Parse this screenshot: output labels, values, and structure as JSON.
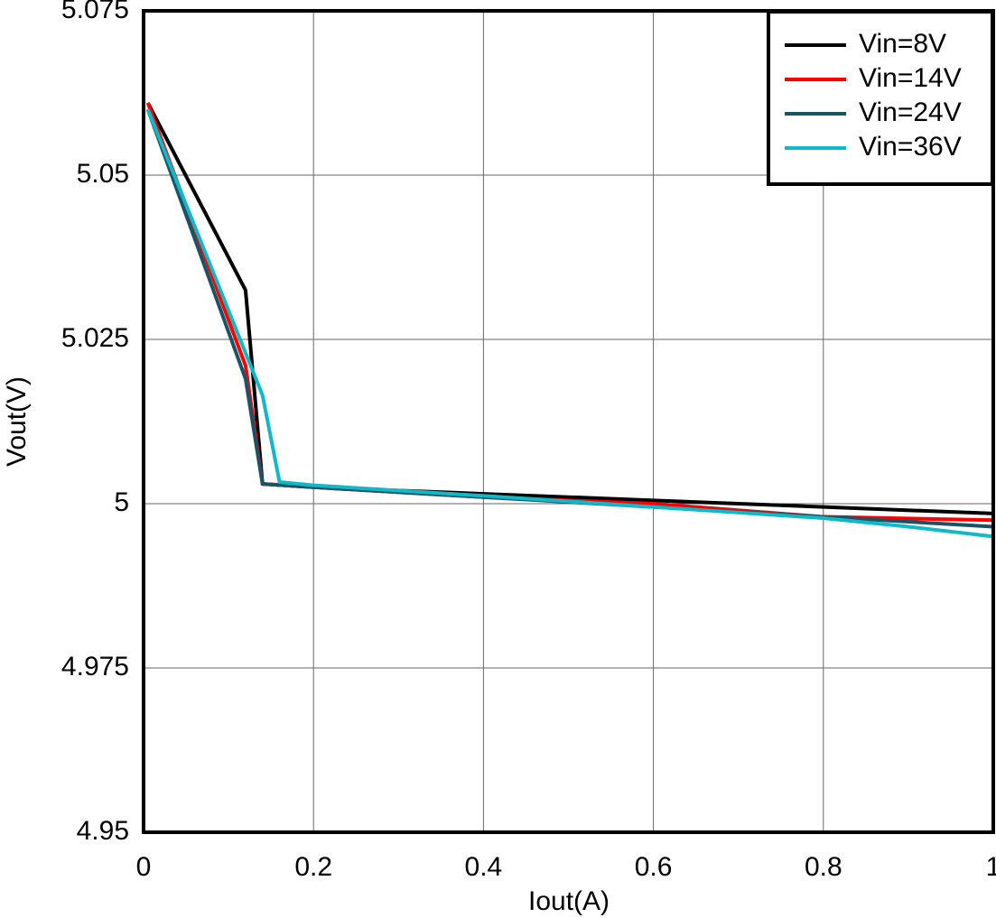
{
  "chart_data": {
    "type": "line",
    "x_label": "Iout(A)",
    "y_label": "Vout(V)",
    "xlim": [
      0,
      1
    ],
    "xticks": [
      0,
      0.2,
      0.4,
      0.6,
      0.8,
      1
    ],
    "ylim": [
      4.95,
      5.075
    ],
    "yticks": [
      4.95,
      4.975,
      5,
      5.025,
      5.05,
      5.075
    ],
    "grid": true,
    "legend": "upper right",
    "series": [
      {
        "name": "Vin=8V",
        "color": "#000000",
        "x": [
          0.005,
          0.12,
          0.14,
          0.2,
          0.4,
          0.6,
          0.8,
          1
        ],
        "values": [
          5.061,
          5.0325,
          5.003,
          5.0025,
          5.0015,
          5.0005,
          4.9995,
          4.9985
        ]
      },
      {
        "name": "Vin=14V",
        "color": "#ff0000",
        "x": [
          0.005,
          0.12,
          0.14,
          0.2,
          0.4,
          0.6,
          0.8,
          1
        ],
        "values": [
          5.061,
          5.021,
          5.003,
          5.0025,
          5.001,
          5.0,
          4.998,
          4.9975
        ]
      },
      {
        "name": "Vin=24V",
        "color": "#1a5366",
        "x": [
          0.005,
          0.12,
          0.14,
          0.2,
          0.4,
          0.6,
          0.8,
          1
        ],
        "values": [
          5.06,
          5.019,
          5.003,
          5.0025,
          5.001,
          4.9995,
          4.998,
          4.9965
        ]
      },
      {
        "name": "Vin=36V",
        "color": "#10b8c8",
        "x": [
          0.005,
          0.14,
          0.16,
          0.2,
          0.4,
          0.6,
          0.8,
          0.9,
          1
        ],
        "values": [
          5.06,
          5.0165,
          5.0033,
          5.0028,
          5.0012,
          4.9995,
          4.9978,
          4.9965,
          4.995
        ]
      }
    ]
  }
}
